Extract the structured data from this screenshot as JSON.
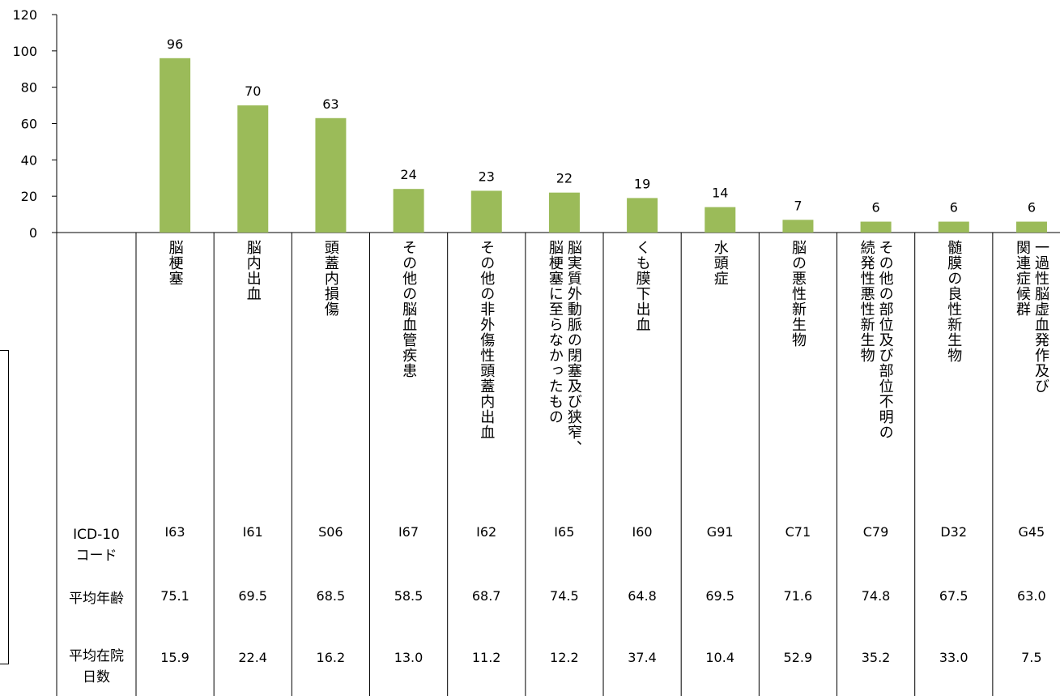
{
  "chart_data": {
    "type": "bar",
    "title": "",
    "xlabel": "",
    "ylabel": "",
    "ylim": [
      0,
      120
    ],
    "yticks": [
      0,
      20,
      40,
      60,
      80,
      100,
      120
    ],
    "grid": false,
    "bar_color": "#9bbb59",
    "categories": [
      "脳梗塞",
      "脳内出血",
      "頭蓋内損傷",
      "その他の脳血管疾患",
      "その他の非外傷性頭蓋内出血",
      "脳実質外動脈の閉塞及び狭窄、脳梗塞に至らなかったもの",
      "くも膜下出血",
      "水頭症",
      "脳の悪性新生物",
      "その他の部位及び部位不明の続発性悪性新生物",
      "髄膜の良性新生物",
      "一過性脳虚血発作及び関連症候群"
    ],
    "category_lines": [
      [
        "脳梗塞"
      ],
      [
        "脳内出血"
      ],
      [
        "頭蓋内損傷"
      ],
      [
        "その他の脳血管疾患"
      ],
      [
        "その他の非外傷性頭蓋内出血"
      ],
      [
        "脳実質外動脈の閉塞及び狭窄、",
        "脳梗塞に至らなかったもの"
      ],
      [
        "くも膜下出血"
      ],
      [
        "水頭症"
      ],
      [
        "脳の悪性新生物"
      ],
      [
        "その他の部位及び部位不明の",
        "続発性悪性新生物"
      ],
      [
        "髄膜の良性新生物"
      ],
      [
        "一過性脳虚血発作及び",
        "関連症候群"
      ]
    ],
    "values": [
      96,
      70,
      63,
      24,
      23,
      22,
      19,
      14,
      7,
      6,
      6,
      6
    ],
    "table": {
      "row_headers": [
        "ICD-10\nコード",
        "平均年齢",
        "平均在院\n日数"
      ],
      "icd_codes": [
        "I63",
        "I61",
        "S06",
        "I67",
        "I62",
        "I65",
        "I60",
        "G91",
        "C71",
        "C79",
        "D32",
        "G45"
      ],
      "avg_age": [
        "75.1",
        "69.5",
        "68.5",
        "58.5",
        "68.7",
        "74.5",
        "64.8",
        "69.5",
        "71.6",
        "74.8",
        "67.5",
        "63.0"
      ],
      "avg_stay_days": [
        "15.9",
        "22.4",
        "16.2",
        "13.0",
        "11.2",
        "12.2",
        "37.4",
        "10.4",
        "52.9",
        "35.2",
        "33.0",
        "7.5"
      ]
    }
  }
}
